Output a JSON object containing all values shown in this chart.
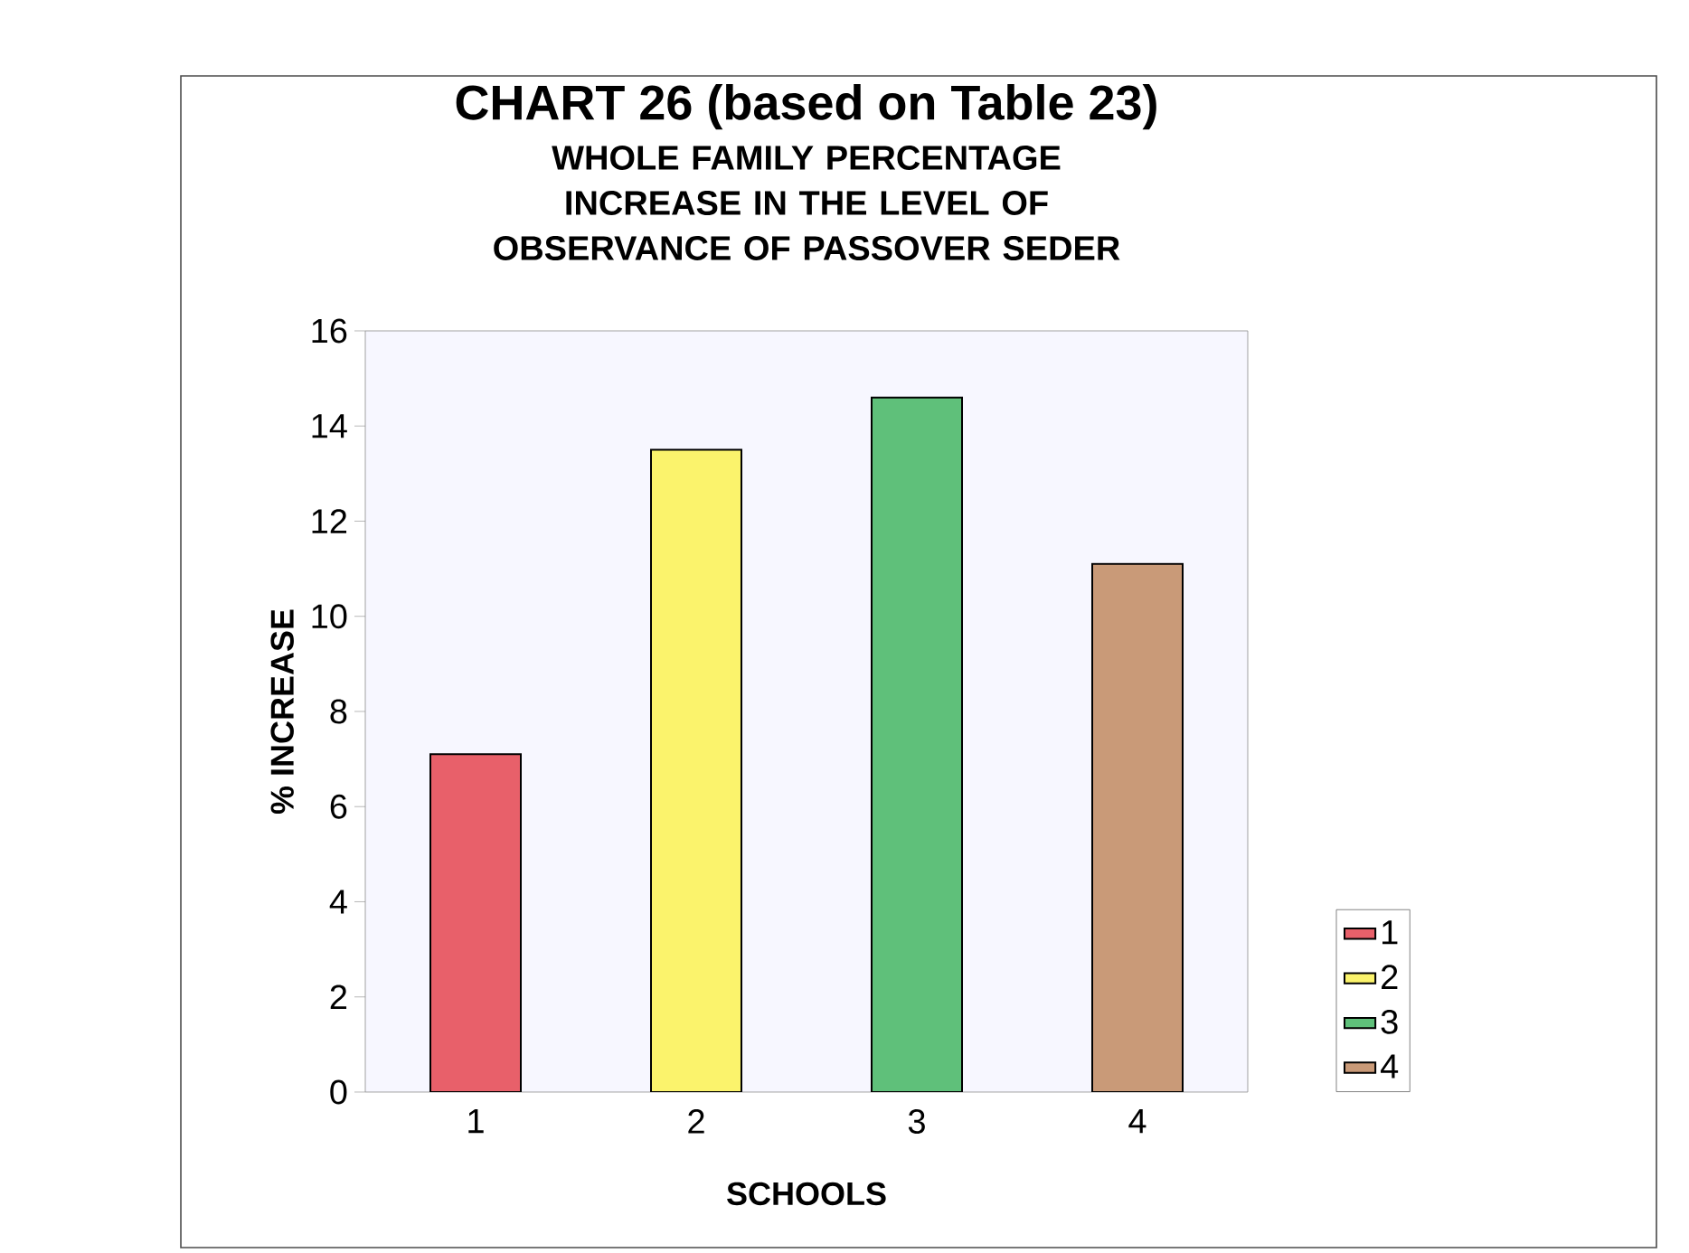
{
  "chart_data": {
    "type": "bar",
    "title": "CHART 26 (based on Table 23)",
    "subtitle": "WHOLE FAMILY PERCENTAGE INCREASE IN THE LEVEL OF OBSERVANCE OF PASSOVER SEDER",
    "xlabel": "SCHOOLS",
    "ylabel": "% INCREASE",
    "categories": [
      "1",
      "2",
      "3",
      "4"
    ],
    "series": [
      {
        "name": "1",
        "color": "#e8606a",
        "values": [
          7.1,
          null,
          null,
          null
        ]
      },
      {
        "name": "2",
        "color": "#fbf36c",
        "values": [
          null,
          13.5,
          null,
          null
        ]
      },
      {
        "name": "3",
        "color": "#5fc07a",
        "values": [
          null,
          null,
          14.6,
          null
        ]
      },
      {
        "name": "4",
        "color": "#c99a78",
        "values": [
          null,
          null,
          null,
          11.1
        ]
      }
    ],
    "ylim": [
      0,
      16
    ],
    "yticks": [
      0,
      2,
      4,
      6,
      8,
      10,
      12,
      14,
      16
    ],
    "legend": "bottom right"
  }
}
